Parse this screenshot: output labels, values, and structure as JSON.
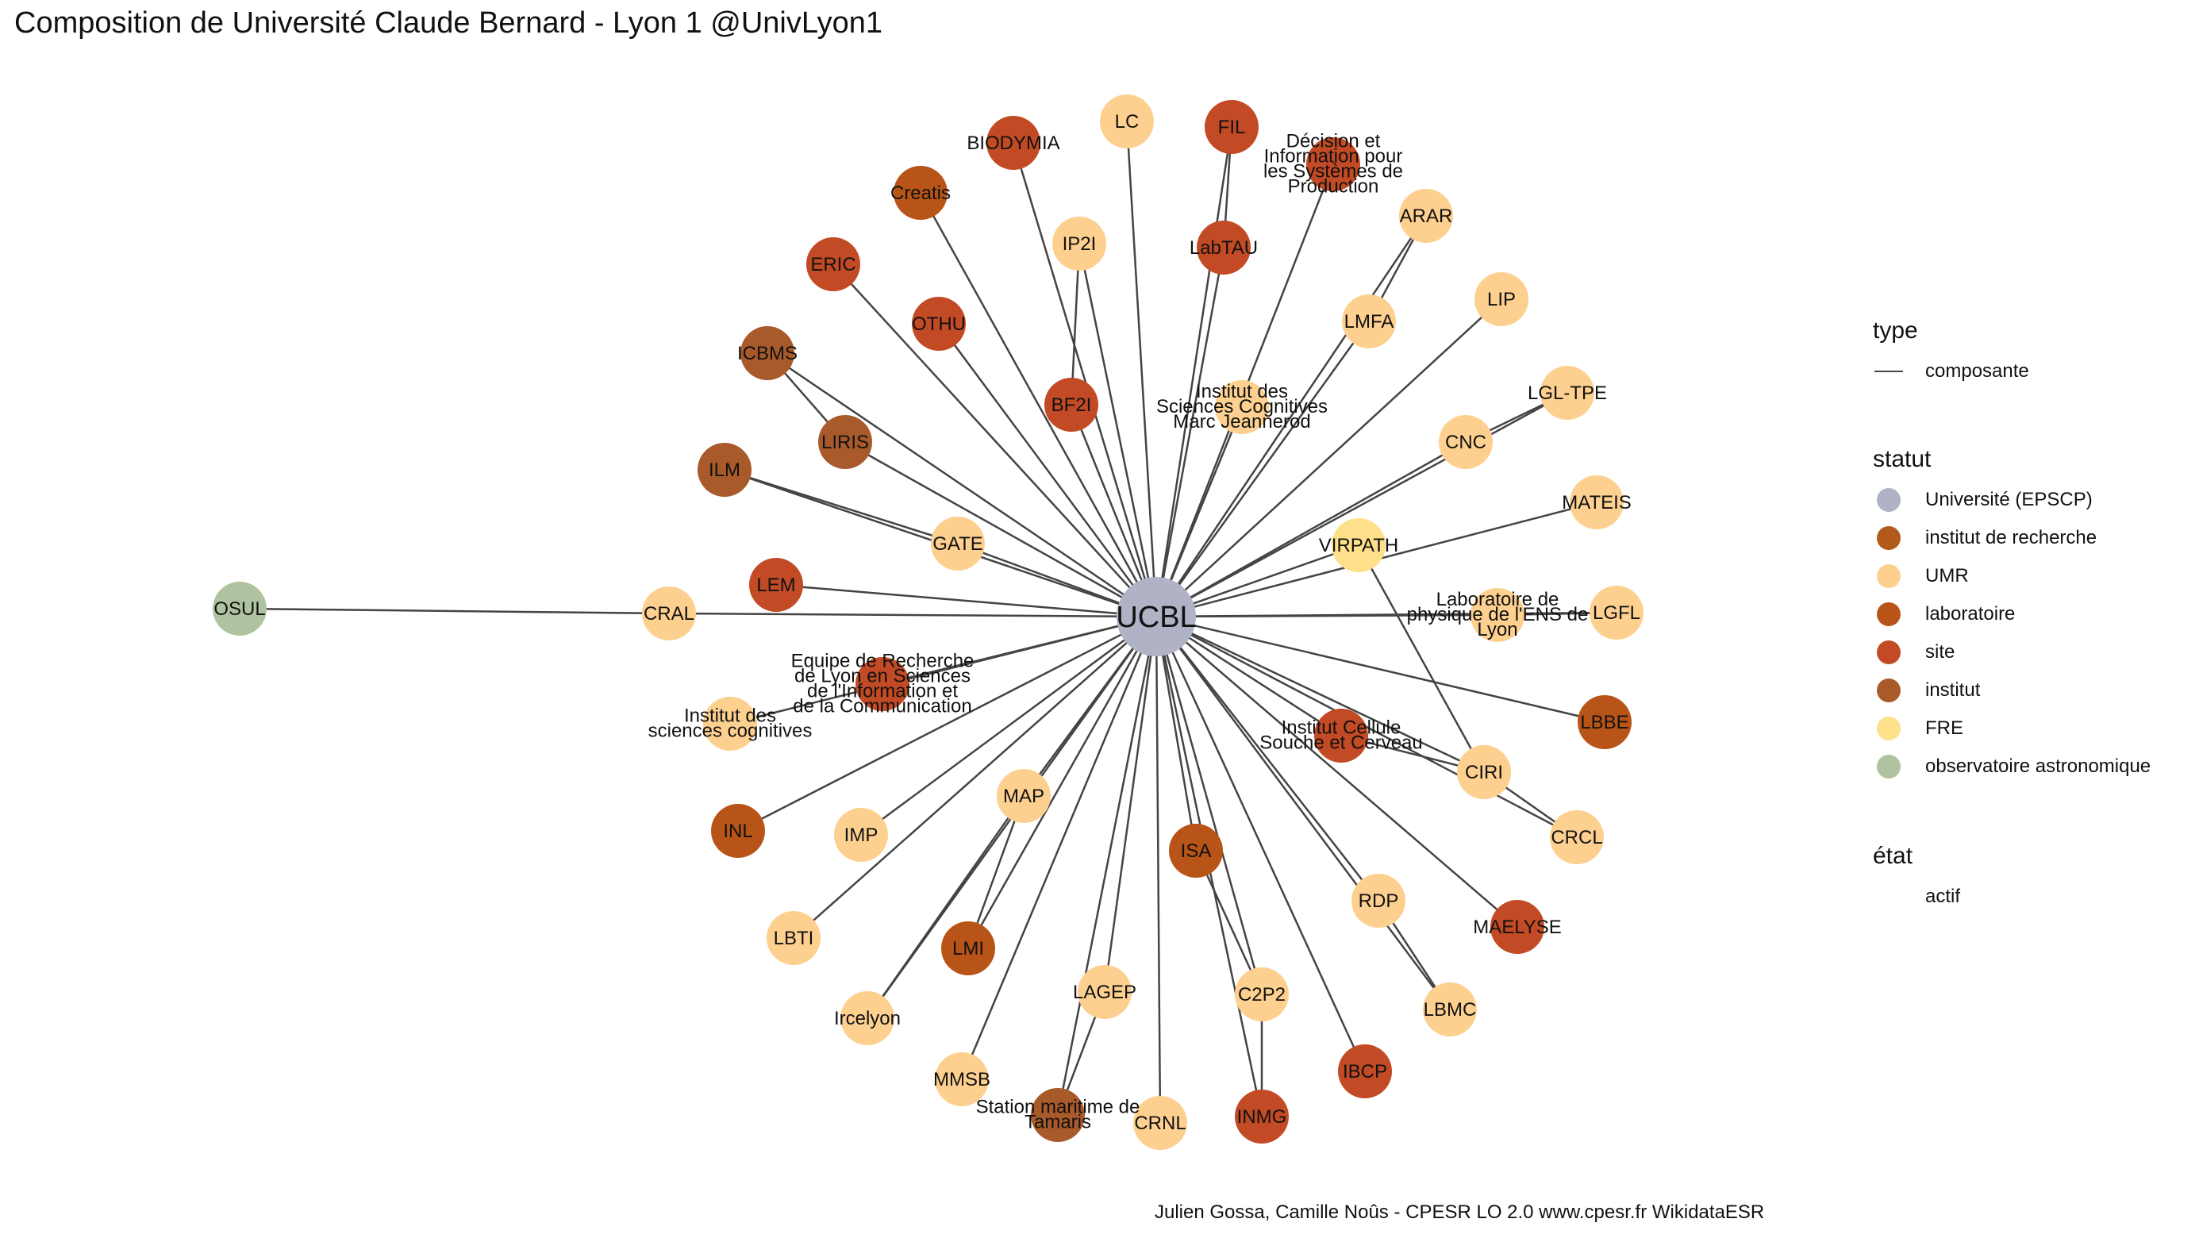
{
  "title": "Composition de Université Claude Bernard - Lyon 1 @UnivLyon1",
  "caption": "Julien Gossa, Camille Noûs - CPESR LO 2.0 www.cpesr.fr WikidataESR",
  "legend": {
    "type": {
      "title": "type",
      "items": [
        {
          "label": "composante"
        }
      ]
    },
    "statut": {
      "title": "statut",
      "items": [
        {
          "label": "Université (EPSCP)",
          "color": "#B0B2C6"
        },
        {
          "label": "institut de recherche",
          "color": "#B15A1C"
        },
        {
          "label": "UMR",
          "color": "#FDD08F"
        },
        {
          "label": "laboratoire",
          "color": "#B85417"
        },
        {
          "label": "site",
          "color": "#C24A24"
        },
        {
          "label": "institut",
          "color": "#A85A2A"
        },
        {
          "label": "FRE",
          "color": "#FFE08A"
        },
        {
          "label": "observatoire astronomique",
          "color": "#AFC3A0"
        }
      ]
    },
    "etat": {
      "title": "état",
      "items": [
        {
          "label": "actif"
        }
      ]
    }
  },
  "graph": {
    "center": {
      "id": "UCBL",
      "label": "UCBL",
      "color": "#B0B2C6"
    },
    "nodes": [
      {
        "id": "LC",
        "label": "LC",
        "color": "#FDD08F"
      },
      {
        "id": "FIL",
        "label": "FIL",
        "color": "#C24A24"
      },
      {
        "id": "BIODYMIA",
        "label": "BIODYMIA",
        "color": "#C24A24"
      },
      {
        "id": "DISP",
        "label": "Décision et Information pour les Systèmes de Production",
        "color": "#C24A24"
      },
      {
        "id": "Creatis",
        "label": "Creatis",
        "color": "#B85417"
      },
      {
        "id": "ARAR",
        "label": "ARAR",
        "color": "#FDD08F"
      },
      {
        "id": "IP2I",
        "label": "IP2I",
        "color": "#FDD08F"
      },
      {
        "id": "LabTAU",
        "label": "LabTAU",
        "color": "#C24A24"
      },
      {
        "id": "ERIC",
        "label": "ERIC",
        "color": "#C24A24"
      },
      {
        "id": "LIP",
        "label": "LIP",
        "color": "#FDD08F"
      },
      {
        "id": "OTHU",
        "label": "OTHU",
        "color": "#C24A24"
      },
      {
        "id": "LMFA",
        "label": "LMFA",
        "color": "#FDD08F"
      },
      {
        "id": "ICBMS",
        "label": "ICBMS",
        "color": "#A85A2A"
      },
      {
        "id": "BF2I",
        "label": "BF2I",
        "color": "#C24A24"
      },
      {
        "id": "LGL-TPE",
        "label": "LGL-TPE",
        "color": "#FDD08F"
      },
      {
        "id": "ISC",
        "label": "Institut des Sciences Cognitives Marc Jeannerod",
        "color": "#FDD08F"
      },
      {
        "id": "LIRIS",
        "label": "LIRIS",
        "color": "#A85A2A"
      },
      {
        "id": "CNC",
        "label": "CNC",
        "color": "#FDD08F"
      },
      {
        "id": "ILM",
        "label": "ILM",
        "color": "#A85A2A"
      },
      {
        "id": "MATEIS",
        "label": "MATEIS",
        "color": "#FDD08F"
      },
      {
        "id": "VIRPATH",
        "label": "VIRPATH",
        "color": "#FFE08A"
      },
      {
        "id": "GATE",
        "label": "GATE",
        "color": "#FDD08F"
      },
      {
        "id": "LEM",
        "label": "LEM",
        "color": "#C24A24"
      },
      {
        "id": "LPENS",
        "label": "Laboratoire de physique de l'ENS de Lyon",
        "color": "#FDD08F"
      },
      {
        "id": "LGFL",
        "label": "LGFL",
        "color": "#FDD08F"
      },
      {
        "id": "CRAL",
        "label": "CRAL",
        "color": "#FDD08F"
      },
      {
        "id": "ELICO",
        "label": "Equipe de Recherche de Lyon en Sciences de l'Information et de la Communication",
        "color": "#C24A24"
      },
      {
        "id": "ISCsc",
        "label": "Institut des sciences cognitives",
        "color": "#FDD08F"
      },
      {
        "id": "LBBE",
        "label": "LBBE",
        "color": "#B85417"
      },
      {
        "id": "SBRI",
        "label": "Institut Cellule Souche et Cerveau",
        "color": "#C24A24"
      },
      {
        "id": "CIRI",
        "label": "CIRI",
        "color": "#FDD08F"
      },
      {
        "id": "MAP",
        "label": "MAP",
        "color": "#FDD08F"
      },
      {
        "id": "CRCL",
        "label": "CRCL",
        "color": "#FDD08F"
      },
      {
        "id": "INL",
        "label": "INL",
        "color": "#B85417"
      },
      {
        "id": "IMP",
        "label": "IMP",
        "color": "#FDD08F"
      },
      {
        "id": "ISA",
        "label": "ISA",
        "color": "#B85417"
      },
      {
        "id": "RDP",
        "label": "RDP",
        "color": "#FDD08F"
      },
      {
        "id": "MAELYSE",
        "label": "MAELYSE",
        "color": "#C24A24"
      },
      {
        "id": "LBTI",
        "label": "LBTI",
        "color": "#FDD08F"
      },
      {
        "id": "LMI",
        "label": "LMI",
        "color": "#B85417"
      },
      {
        "id": "LAGEP",
        "label": "LAGEP",
        "color": "#FDD08F"
      },
      {
        "id": "C2P2",
        "label": "C2P2",
        "color": "#FDD08F"
      },
      {
        "id": "LBMC",
        "label": "LBMC",
        "color": "#FDD08F"
      },
      {
        "id": "Ircelyon",
        "label": "Ircelyon",
        "color": "#FDD08F"
      },
      {
        "id": "IBCP",
        "label": "IBCP",
        "color": "#C24A24"
      },
      {
        "id": "MMSB",
        "label": "MMSB",
        "color": "#FDD08F"
      },
      {
        "id": "SMT",
        "label": "Station maritime de Tamaris",
        "color": "#A85A2A"
      },
      {
        "id": "CRNL",
        "label": "CRNL",
        "color": "#FDD08F"
      },
      {
        "id": "INMG",
        "label": "INMG",
        "color": "#C24A24"
      },
      {
        "id": "OSUL",
        "label": "OSUL",
        "color": "#AFC3A0"
      }
    ],
    "edges": [
      [
        "UCBL",
        "LC"
      ],
      [
        "UCBL",
        "FIL"
      ],
      [
        "UCBL",
        "BIODYMIA"
      ],
      [
        "UCBL",
        "DISP"
      ],
      [
        "UCBL",
        "Creatis"
      ],
      [
        "UCBL",
        "ARAR"
      ],
      [
        "UCBL",
        "IP2I"
      ],
      [
        "UCBL",
        "LabTAU"
      ],
      [
        "UCBL",
        "ERIC"
      ],
      [
        "UCBL",
        "LIP"
      ],
      [
        "UCBL",
        "OTHU"
      ],
      [
        "UCBL",
        "LMFA"
      ],
      [
        "UCBL",
        "ICBMS"
      ],
      [
        "UCBL",
        "BF2I"
      ],
      [
        "UCBL",
        "LGL-TPE"
      ],
      [
        "UCBL",
        "ISC"
      ],
      [
        "UCBL",
        "LIRIS"
      ],
      [
        "UCBL",
        "CNC"
      ],
      [
        "UCBL",
        "ILM"
      ],
      [
        "UCBL",
        "MATEIS"
      ],
      [
        "UCBL",
        "VIRPATH"
      ],
      [
        "UCBL",
        "GATE"
      ],
      [
        "UCBL",
        "LEM"
      ],
      [
        "UCBL",
        "LPENS"
      ],
      [
        "UCBL",
        "LGFL"
      ],
      [
        "UCBL",
        "CRAL"
      ],
      [
        "UCBL",
        "ELICO"
      ],
      [
        "UCBL",
        "ISCsc"
      ],
      [
        "UCBL",
        "LBBE"
      ],
      [
        "UCBL",
        "SBRI"
      ],
      [
        "UCBL",
        "CIRI"
      ],
      [
        "UCBL",
        "MAP"
      ],
      [
        "UCBL",
        "CRCL"
      ],
      [
        "UCBL",
        "INL"
      ],
      [
        "UCBL",
        "IMP"
      ],
      [
        "UCBL",
        "ISA"
      ],
      [
        "UCBL",
        "RDP"
      ],
      [
        "UCBL",
        "MAELYSE"
      ],
      [
        "UCBL",
        "LBTI"
      ],
      [
        "UCBL",
        "LMI"
      ],
      [
        "UCBL",
        "LAGEP"
      ],
      [
        "UCBL",
        "C2P2"
      ],
      [
        "UCBL",
        "LBMC"
      ],
      [
        "UCBL",
        "Ircelyon"
      ],
      [
        "UCBL",
        "IBCP"
      ],
      [
        "UCBL",
        "MMSB"
      ],
      [
        "UCBL",
        "SMT"
      ],
      [
        "UCBL",
        "CRNL"
      ],
      [
        "UCBL",
        "INMG"
      ],
      [
        "CRAL",
        "OSUL"
      ],
      [
        "LabTAU",
        "FIL"
      ],
      [
        "LMFA",
        "ARAR"
      ],
      [
        "BF2I",
        "IP2I"
      ],
      [
        "CNC",
        "LGL-TPE"
      ],
      [
        "LIRIS",
        "ICBMS"
      ],
      [
        "GATE",
        "ILM"
      ],
      [
        "VIRPATH",
        "CIRI"
      ],
      [
        "CIRI",
        "CRCL"
      ],
      [
        "SBRI",
        "CIRI"
      ],
      [
        "MAP",
        "LMI"
      ],
      [
        "MAP",
        "Ircelyon"
      ],
      [
        "ISA",
        "C2P2"
      ],
      [
        "C2P2",
        "INMG"
      ],
      [
        "RDP",
        "LBMC"
      ],
      [
        "LAGEP",
        "SMT"
      ],
      [
        "LPENS",
        "LGFL"
      ]
    ]
  }
}
